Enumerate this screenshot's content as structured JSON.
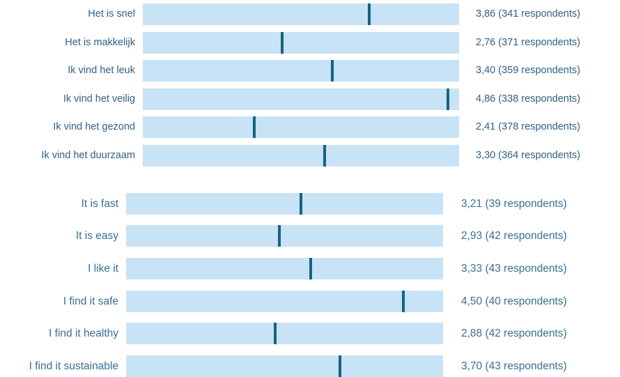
{
  "chart_data": [
    {
      "type": "bar",
      "title": "",
      "xlabel": "",
      "ylabel": "",
      "xlim": [
        1,
        5
      ],
      "categories": [
        "Het is snel",
        "Het is makkelijk",
        "Ik vind het leuk",
        "Ik vind het veilig",
        "Ik vind het gezond",
        "Ik vind het duurzaam"
      ],
      "values": [
        3.86,
        2.76,
        3.4,
        4.86,
        2.41,
        3.3
      ],
      "respondents": [
        341,
        371,
        359,
        338,
        378,
        364
      ],
      "value_labels": [
        "3,86 (341 respondents)",
        "2,76 (371 respondents)",
        "3,40 (359 respondents)",
        "4,86 (338 respondents)",
        "2,41 (378 respondents)",
        "3,30 (364 respondents)"
      ]
    },
    {
      "type": "bar",
      "title": "",
      "xlabel": "",
      "ylabel": "",
      "xlim": [
        1,
        5
      ],
      "categories": [
        "It is fast",
        "It is easy",
        "I like it",
        "I find it safe",
        "I find it healthy",
        "I find it sustainable"
      ],
      "values": [
        3.21,
        2.93,
        3.33,
        4.5,
        2.88,
        3.7
      ],
      "respondents": [
        39,
        42,
        43,
        40,
        42,
        43
      ],
      "value_labels": [
        "3,21 (39 respondents)",
        "2,93 (42 respondents)",
        "3,33 (43 respondents)",
        "4,50 (40 respondents)",
        "2,88 (42 respondents)",
        "3,70 (43 respondents)"
      ]
    }
  ],
  "colors": {
    "track": "#c7e3f5",
    "marker": "#17637f",
    "text_nl": "#2f5f86",
    "text_en": "#3a6d96"
  }
}
